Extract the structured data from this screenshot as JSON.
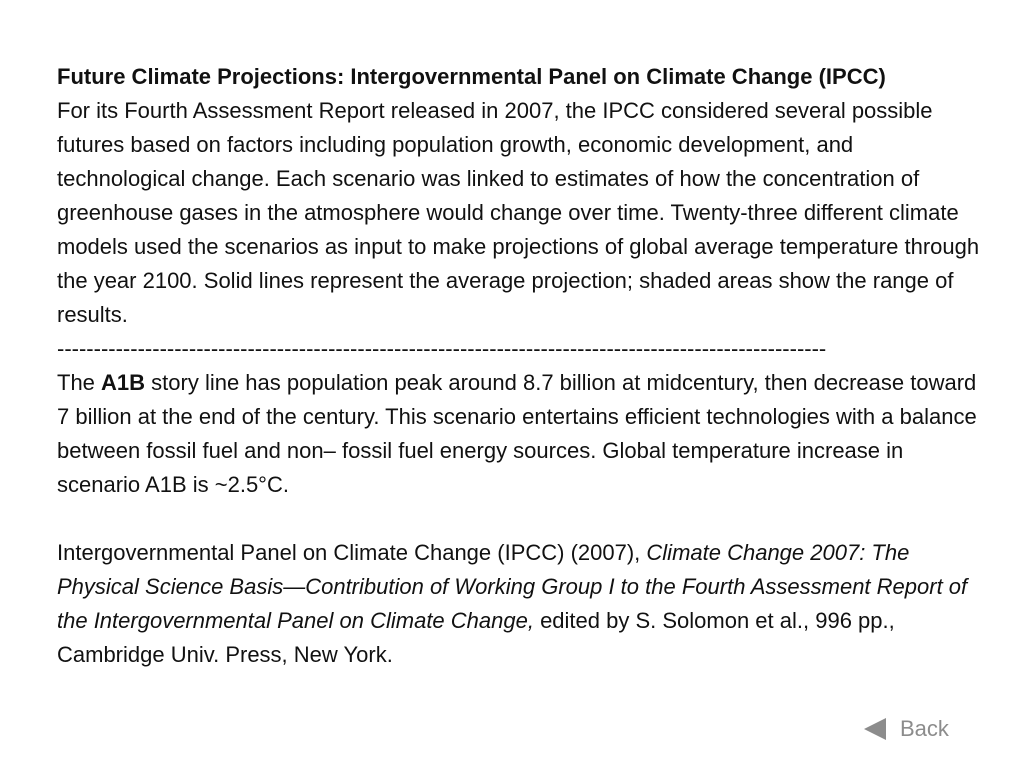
{
  "document": {
    "title": "Future Climate Projections: Intergovernmental Panel on Climate Change (IPCC)",
    "intro": "For its Fourth Assessment Report released in 2007, the IPCC considered several possible futures based on factors including population growth, economic development, and technological change. Each scenario was linked to estimates of how the concentration of greenhouse gases in the atmosphere would change over time. Twenty-three different climate models used the scenarios as input to make projections of global average temperature through the year 2100. Solid lines represent the average projection; shaded areas show the range of results.",
    "divider": "---------------------------------------------------------------------------------------------------------",
    "scenario": {
      "prefix": "The ",
      "name": "A1B",
      "text": " story line has population peak around 8.7 billion at midcentury, then decrease toward 7 billion at the end of the century. This scenario entertains efficient technologies with a balance between fossil fuel and non– fossil fuel energy sources. Global temperature increase in scenario A1B is ~2.5°C."
    },
    "citation": {
      "authors": "Intergovernmental Panel on Climate Change (IPCC) (2007), ",
      "work_title": "Climate Change 2007: The Physical Science Basis—Contribution of Working Group I to the Fourth Assessment Report of the Intergovernmental Panel on Climate Change,",
      "rest": " edited by S. Solomon et al., 996 pp., Cambridge Univ. Press, New York."
    }
  },
  "nav": {
    "back_label": "Back",
    "back_icon": "left-triangle-icon",
    "color": "#8c8c8c"
  }
}
